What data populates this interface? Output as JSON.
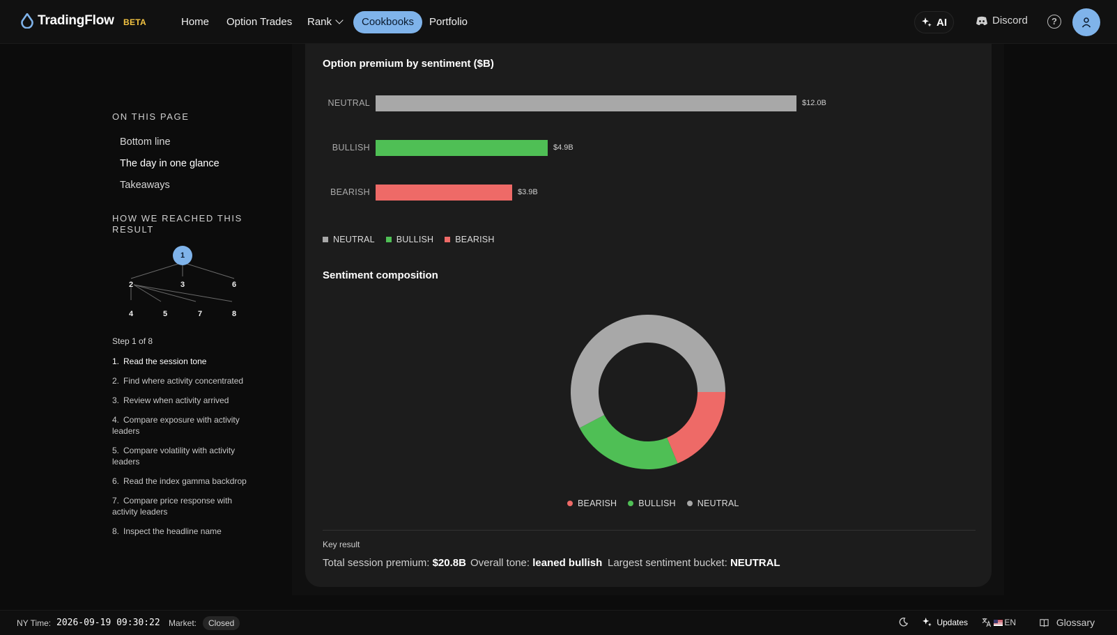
{
  "app": {
    "name": "TradingFlow",
    "badge": "BETA"
  },
  "nav": {
    "items": [
      "Home",
      "Option Trades",
      "Rank",
      "Cookbooks",
      "Portfolio"
    ],
    "active": "Cookbooks",
    "ai_label": "AI",
    "discord_label": "Discord"
  },
  "sidebar": {
    "on_this_page_title": "ON THIS PAGE",
    "toc": [
      "Bottom line",
      "The day in one glance",
      "Takeaways"
    ],
    "toc_current": "The day in one glance",
    "how_title": "HOW WE REACHED THIS RESULT",
    "graph_nodes": [
      "1",
      "2",
      "3",
      "6",
      "4",
      "5",
      "7",
      "8"
    ],
    "step_counter": "Step 1 of 8",
    "steps": [
      {
        "num": "1.",
        "text": "Read the session tone"
      },
      {
        "num": "2.",
        "text": "Find where activity concentrated"
      },
      {
        "num": "3.",
        "text": "Review when activity arrived"
      },
      {
        "num": "4.",
        "text": "Compare exposure with activity leaders"
      },
      {
        "num": "5.",
        "text": "Compare volatility with activity leaders"
      },
      {
        "num": "6.",
        "text": "Read the index gamma backdrop"
      },
      {
        "num": "7.",
        "text": "Compare price response with activity leaders"
      },
      {
        "num": "8.",
        "text": "Inspect the headline name"
      }
    ]
  },
  "main": {
    "premium_title": "Option premium by sentiment ($B)",
    "composition_title": "Sentiment composition",
    "key_result_label": "Key result",
    "key_results": {
      "total_label": "Total session premium:",
      "total_value": "$20.8B",
      "tone_label": "Overall tone:",
      "tone_value": "leaned bullish",
      "bucket_label": "Largest sentiment bucket:",
      "bucket_value": "NEUTRAL"
    }
  },
  "chart_data": [
    {
      "type": "bar",
      "orientation": "horizontal",
      "title": "Option premium by sentiment ($B)",
      "categories": [
        "NEUTRAL",
        "BULLISH",
        "BEARISH"
      ],
      "values": [
        12.0,
        4.9,
        3.9
      ],
      "value_labels": [
        "$12.0B",
        "$4.9B",
        "$3.9B"
      ],
      "colors": [
        "#a8a8a8",
        "#4fbf55",
        "#ee6a67"
      ],
      "legend": [
        "NEUTRAL",
        "BULLISH",
        "BEARISH"
      ],
      "legend_placement": "bottom-left",
      "grid": false
    },
    {
      "type": "pie",
      "style": "donut",
      "title": "Sentiment composition",
      "categories": [
        "BEARISH",
        "BULLISH",
        "NEUTRAL"
      ],
      "values": [
        3.9,
        4.9,
        12.0
      ],
      "colors": [
        "#ee6a67",
        "#4fbf55",
        "#a8a8a8"
      ],
      "legend": [
        "BEARISH",
        "BULLISH",
        "NEUTRAL"
      ],
      "legend_placement": "bottom"
    }
  ],
  "status": {
    "ny_time_label": "NY Time:",
    "ny_time_value": "2026-09-19 09:30:22",
    "market_label": "Market:",
    "market_value": "Closed",
    "updates_label": "Updates",
    "lang_label": "EN",
    "glossary_label": "Glossary"
  }
}
